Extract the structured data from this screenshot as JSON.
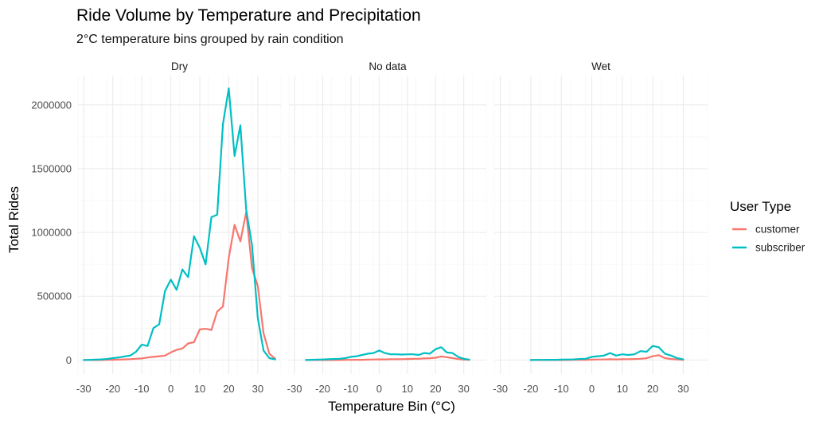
{
  "chart_data": {
    "type": "line",
    "title": "Ride Volume by Temperature and Precipitation",
    "subtitle": "2°C temperature bins grouped by rain condition",
    "xlabel": "Temperature Bin (°C)",
    "ylabel": "Total Rides",
    "xlim": [
      -32,
      38
    ],
    "ylim": [
      -110000,
      2230000
    ],
    "x_ticks": [
      -30,
      -20,
      -10,
      0,
      10,
      20,
      30
    ],
    "y_ticks": [
      0,
      500000,
      1000000,
      1500000,
      2000000
    ],
    "grid": true,
    "legend": {
      "title": "User Type",
      "position": "right",
      "entries": [
        {
          "label": "customer",
          "color": "#F8766D"
        },
        {
          "label": "subscriber",
          "color": "#00BFC4"
        }
      ]
    },
    "facets": [
      {
        "label": "Dry",
        "series": [
          {
            "name": "customer",
            "color": "#F8766D",
            "x": [
              -30,
              -28,
              -26,
              -24,
              -22,
              -20,
              -18,
              -16,
              -14,
              -12,
              -10,
              -8,
              -6,
              -4,
              -2,
              0,
              2,
              4,
              6,
              8,
              10,
              12,
              14,
              16,
              18,
              20,
              22,
              24,
              26,
              28,
              30,
              32,
              34,
              36
            ],
            "y": [
              0,
              0,
              0,
              0,
              1000,
              2000,
              3000,
              5000,
              7000,
              10000,
              12000,
              20000,
              25000,
              30000,
              35000,
              60000,
              80000,
              90000,
              130000,
              140000,
              240000,
              245000,
              235000,
              380000,
              420000,
              800000,
              1060000,
              930000,
              1160000,
              720000,
              580000,
              210000,
              50000,
              10000
            ]
          },
          {
            "name": "subscriber",
            "color": "#00BFC4",
            "x": [
              -30,
              -28,
              -26,
              -24,
              -22,
              -20,
              -18,
              -16,
              -14,
              -12,
              -10,
              -8,
              -6,
              -4,
              -2,
              0,
              2,
              4,
              6,
              8,
              10,
              12,
              14,
              16,
              18,
              20,
              22,
              24,
              26,
              28,
              30,
              32,
              34,
              36
            ],
            "y": [
              0,
              1000,
              3000,
              5000,
              8000,
              15000,
              20000,
              28000,
              35000,
              65000,
              120000,
              110000,
              250000,
              280000,
              540000,
              630000,
              550000,
              710000,
              650000,
              970000,
              880000,
              750000,
              1120000,
              1140000,
              1850000,
              2130000,
              1600000,
              1840000,
              1180000,
              900000,
              330000,
              75000,
              15000,
              5000
            ]
          }
        ]
      },
      {
        "label": "No data",
        "series": [
          {
            "name": "customer",
            "color": "#F8766D",
            "x": [
              -26,
              -24,
              -22,
              -20,
              -18,
              -16,
              -14,
              -12,
              -10,
              -8,
              -6,
              -4,
              -2,
              0,
              2,
              4,
              6,
              8,
              10,
              12,
              14,
              16,
              18,
              20,
              22,
              24,
              26,
              28,
              30,
              32
            ],
            "y": [
              0,
              0,
              0,
              0,
              0,
              0,
              0,
              1000,
              1000,
              2000,
              2000,
              3000,
              4000,
              5000,
              5000,
              6000,
              6000,
              7000,
              8000,
              9000,
              10000,
              12000,
              14000,
              18000,
              28000,
              22000,
              15000,
              8000,
              3000,
              1000
            ]
          },
          {
            "name": "subscriber",
            "color": "#00BFC4",
            "x": [
              -26,
              -24,
              -22,
              -20,
              -18,
              -16,
              -14,
              -12,
              -10,
              -8,
              -6,
              -4,
              -2,
              0,
              2,
              4,
              6,
              8,
              10,
              12,
              14,
              16,
              18,
              20,
              22,
              24,
              26,
              28,
              30,
              32
            ],
            "y": [
              0,
              2000,
              3000,
              4000,
              6000,
              8000,
              10000,
              15000,
              25000,
              30000,
              40000,
              50000,
              55000,
              75000,
              55000,
              45000,
              45000,
              43000,
              45000,
              45000,
              40000,
              55000,
              50000,
              85000,
              100000,
              60000,
              55000,
              25000,
              10000,
              3000
            ]
          }
        ]
      },
      {
        "label": "Wet",
        "series": [
          {
            "name": "customer",
            "color": "#F8766D",
            "x": [
              -20,
              -18,
              -16,
              -14,
              -12,
              -10,
              -8,
              -6,
              -4,
              -2,
              0,
              2,
              4,
              6,
              8,
              10,
              12,
              14,
              16,
              18,
              20,
              22,
              24,
              26,
              28,
              30
            ],
            "y": [
              0,
              0,
              0,
              0,
              0,
              0,
              0,
              1000,
              1000,
              2000,
              3000,
              4000,
              4000,
              6000,
              5000,
              6000,
              7000,
              8000,
              10000,
              14000,
              30000,
              38000,
              15000,
              8000,
              4000,
              1000
            ]
          },
          {
            "name": "subscriber",
            "color": "#00BFC4",
            "x": [
              -20,
              -18,
              -16,
              -14,
              -12,
              -10,
              -8,
              -6,
              -4,
              -2,
              0,
              2,
              4,
              6,
              8,
              10,
              12,
              14,
              16,
              18,
              20,
              22,
              24,
              26,
              28,
              30
            ],
            "y": [
              0,
              1000,
              1000,
              2000,
              2000,
              3000,
              4000,
              5000,
              8000,
              10000,
              25000,
              30000,
              35000,
              55000,
              35000,
              45000,
              40000,
              45000,
              70000,
              65000,
              110000,
              100000,
              50000,
              35000,
              15000,
              5000
            ]
          }
        ]
      }
    ]
  }
}
